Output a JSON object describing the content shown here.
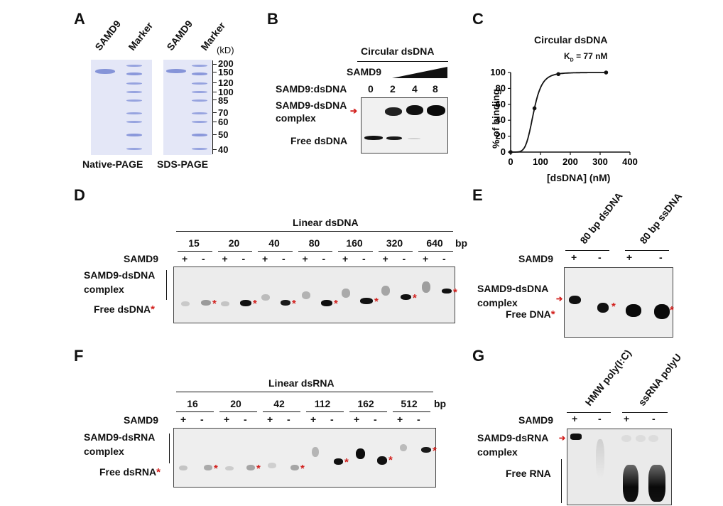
{
  "panels": {
    "A": "A",
    "B": "B",
    "C": "C",
    "D": "D",
    "E": "E",
    "F": "F",
    "G": "G"
  },
  "panelA": {
    "lanes": [
      "SAMD9",
      "Marker",
      "SAMD9",
      "Marker"
    ],
    "unit": "(kD)",
    "markers": [
      "200",
      "150",
      "120",
      "100",
      "85",
      "70",
      "60",
      "50",
      "40"
    ],
    "captions": [
      "Native-PAGE",
      "SDS-PAGE"
    ]
  },
  "panelB": {
    "title": "Circular dsDNA",
    "samd9": "SAMD9",
    "ratio_label": "SAMD9:dsDNA",
    "ratios": [
      "0",
      "2",
      "4",
      "8"
    ],
    "complex": [
      "SAMD9-dsDNA",
      "complex"
    ],
    "free": "Free dsDNA"
  },
  "panelC": {
    "title": "Circular dsDNA",
    "kd_main": "K",
    "kd_sub": "D",
    "kd_value": " = 77 nM",
    "chart_data": {
      "type": "scatter",
      "title": "Circular dsDNA",
      "xlabel": "[dsDNA] (nM)",
      "ylabel": "% of binding",
      "xlim": [
        0,
        400
      ],
      "ylim": [
        0,
        100
      ],
      "xticks": [
        "0",
        "100",
        "200",
        "300",
        "400"
      ],
      "yticks": [
        "0",
        "20",
        "40",
        "60",
        "80",
        "100"
      ],
      "points": [
        {
          "x": 0,
          "y": 0
        },
        {
          "x": 80,
          "y": 55
        },
        {
          "x": 160,
          "y": 98
        },
        {
          "x": 320,
          "y": 100
        }
      ],
      "fit": {
        "kd": 77,
        "hill": 5.5
      }
    }
  },
  "panelD": {
    "title": "Linear dsDNA",
    "sizes": [
      "15",
      "20",
      "40",
      "80",
      "160",
      "320",
      "640"
    ],
    "unit": "bp",
    "samd9": "SAMD9",
    "signs": [
      "+",
      "-"
    ],
    "complex": [
      "SAMD9-dsDNA",
      "complex"
    ],
    "free": "Free dsDNA"
  },
  "panelE": {
    "groups": [
      "80 bp dsDNA",
      "80 bp ssDNA"
    ],
    "samd9": "SAMD9",
    "signs": [
      "+",
      "-"
    ],
    "complex": [
      "SAMD9-dsDNA",
      "complex"
    ],
    "free": "Free DNA"
  },
  "panelF": {
    "title": "Linear dsRNA",
    "sizes": [
      "16",
      "20",
      "42",
      "112",
      "162",
      "512"
    ],
    "unit": "bp",
    "samd9": "SAMD9",
    "signs": [
      "+",
      "-"
    ],
    "complex": [
      "SAMD9-dsRNA",
      "complex"
    ],
    "free": "Free dsRNA"
  },
  "panelG": {
    "groups": [
      "HMW poly(I:C)",
      "ssRNA polyU"
    ],
    "samd9": "SAMD9",
    "signs": [
      "+",
      "-"
    ],
    "complex": [
      "SAMD9-dsRNA",
      "complex"
    ],
    "free": "Free RNA"
  },
  "colors": {
    "accent_red": "#d2201d",
    "coomassie": "#7f8fd6",
    "gel_dark": "#111111"
  }
}
